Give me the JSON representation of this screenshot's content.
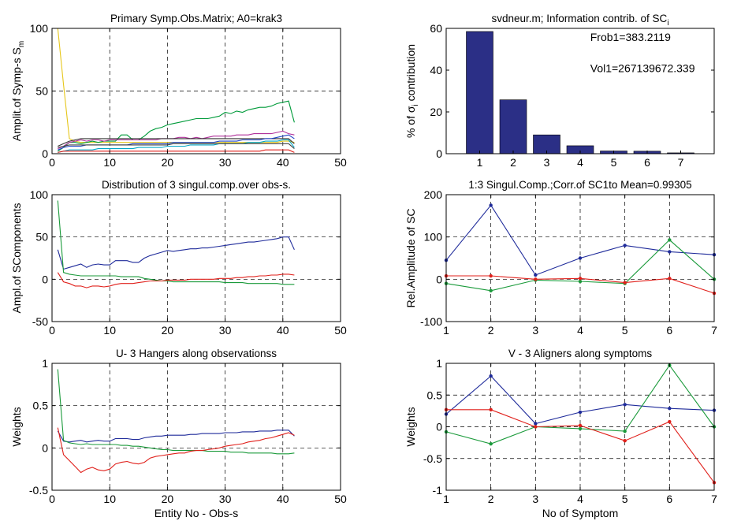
{
  "chart_data": [
    {
      "id": "p1",
      "type": "line",
      "title": "Primary Symp.Obs.Matrix; A0=krak3",
      "ylabel": "Amplit.of Symp-s S",
      "ylabel_sub": "m",
      "xlabel": "",
      "xlim": [
        0,
        50
      ],
      "ylim": [
        0,
        100
      ],
      "xticks": [
        0,
        10,
        20,
        30,
        40,
        50
      ],
      "yticks": [
        0,
        50,
        100
      ],
      "grid": true,
      "x_start": 1,
      "series": [
        {
          "color": "#e6c619",
          "values": [
            100,
            55,
            12,
            10,
            9,
            9,
            9,
            9,
            9,
            9,
            9,
            9,
            9,
            9,
            9,
            9,
            9,
            9,
            9,
            9,
            9,
            9,
            9,
            9,
            9,
            9,
            9,
            9,
            9,
            9,
            9,
            9,
            9,
            9,
            9,
            9,
            9,
            9,
            9,
            10,
            10,
            9
          ]
        },
        {
          "color": "#009b3a",
          "values": [
            2,
            5,
            9,
            9,
            8,
            9,
            10,
            9,
            10,
            10,
            10,
            15,
            15,
            11,
            11,
            14,
            18,
            20,
            21,
            23,
            24,
            25,
            26,
            27,
            28,
            28,
            28,
            29,
            30,
            33,
            32,
            34,
            33,
            35,
            36,
            37,
            37,
            38,
            40,
            41,
            42,
            25
          ]
        },
        {
          "color": "#b0309a",
          "values": [
            4,
            6,
            9,
            10,
            11,
            10,
            11,
            11,
            10,
            11,
            11,
            11,
            11,
            11,
            11,
            11,
            11,
            11,
            12,
            12,
            12,
            13,
            13,
            12,
            13,
            12,
            13,
            14,
            14,
            14,
            14,
            15,
            15,
            15,
            16,
            16,
            16,
            16,
            17,
            18,
            16,
            15
          ]
        },
        {
          "color": "#333333",
          "values": [
            6,
            8,
            10,
            11,
            12,
            12,
            12,
            12,
            12,
            12,
            12,
            12,
            12,
            12,
            12,
            12,
            12,
            12,
            12,
            12,
            12,
            12,
            12,
            12,
            12,
            12,
            12,
            12,
            12,
            12,
            12,
            12,
            12,
            12,
            12,
            12,
            12,
            12,
            12,
            12,
            12,
            8
          ]
        },
        {
          "color": "#1e44c8",
          "values": [
            3,
            5,
            6,
            6,
            6,
            7,
            7,
            7,
            7,
            7,
            7,
            7,
            7,
            8,
            8,
            8,
            8,
            8,
            8,
            8,
            9,
            9,
            9,
            9,
            9,
            9,
            9,
            9,
            10,
            10,
            10,
            10,
            11,
            11,
            11,
            11,
            12,
            12,
            13,
            14,
            15,
            12
          ]
        },
        {
          "color": "#00a6c6",
          "values": [
            1,
            2,
            3,
            3,
            3,
            3,
            3,
            4,
            4,
            4,
            4,
            4,
            4,
            4,
            5,
            5,
            5,
            5,
            5,
            6,
            6,
            6,
            6,
            7,
            7,
            7,
            7,
            7,
            8,
            8,
            8,
            8,
            8,
            9,
            9,
            9,
            10,
            10,
            10,
            11,
            11,
            5
          ]
        },
        {
          "color": "#e0201b",
          "values": [
            1,
            2,
            2,
            2,
            2,
            2,
            2,
            2,
            2,
            2,
            2,
            2,
            2,
            2,
            2,
            2,
            2,
            2,
            2,
            2,
            2,
            2,
            2,
            2,
            2,
            2,
            2,
            2,
            2,
            2,
            2,
            2,
            2,
            2,
            2,
            2,
            3,
            3,
            3,
            3,
            3,
            1
          ]
        },
        {
          "color": "#444444",
          "values": [
            5,
            6,
            7,
            7,
            7,
            7,
            7,
            7,
            7,
            7,
            7,
            7,
            7,
            7,
            7,
            7,
            7,
            7,
            7,
            7,
            8,
            8,
            8,
            8,
            8,
            8,
            8,
            8,
            8,
            8,
            8,
            8,
            8,
            8,
            8,
            8,
            8,
            8,
            8,
            8,
            8,
            4
          ]
        }
      ]
    },
    {
      "id": "p2",
      "type": "bar",
      "title": "svdneur.m; Information contrib. of SC",
      "title_sub": "i",
      "ylabel": "% of σ",
      "ylabel_sub": "i",
      "ylabel_suffix": " contribution",
      "xlabel": "",
      "xlim": [
        0,
        8
      ],
      "ylim": [
        0,
        60
      ],
      "xticks": [
        1,
        2,
        3,
        4,
        5,
        6,
        7
      ],
      "yticks": [
        0,
        20,
        40,
        60
      ],
      "grid": false,
      "bar_color": "#2b2f86",
      "categories": [
        1,
        2,
        3,
        4,
        5,
        6,
        7
      ],
      "values": [
        58.5,
        25.8,
        9.0,
        3.8,
        1.3,
        1.2,
        0.4
      ],
      "annotations": [
        "Frob1=383.2119",
        "Vol1=267139672.339"
      ]
    },
    {
      "id": "p3",
      "type": "line",
      "title": "Distribution of 3 singul.comp.over obs-s.",
      "ylabel": "Ampl.of SComponents",
      "xlabel": "",
      "xlim": [
        0,
        50
      ],
      "ylim": [
        -50,
        100
      ],
      "xticks": [
        0,
        10,
        20,
        30,
        40,
        50
      ],
      "yticks": [
        -50,
        0,
        50,
        100
      ],
      "grid": true,
      "x_start": 1,
      "series": [
        {
          "color": "#1e2a9a",
          "values": [
            35,
            12,
            14,
            16,
            18,
            14,
            17,
            18,
            17,
            17,
            22,
            22,
            22,
            20,
            20,
            25,
            28,
            30,
            32,
            34,
            33,
            34,
            35,
            36,
            36,
            37,
            37,
            38,
            39,
            40,
            41,
            42,
            43,
            44,
            44,
            45,
            46,
            47,
            48,
            50,
            50,
            35
          ]
        },
        {
          "color": "#1a9a3a",
          "values": [
            93,
            8,
            6,
            5,
            4,
            4,
            4,
            4,
            4,
            4,
            4,
            3,
            3,
            3,
            3,
            1,
            0,
            -1,
            -2,
            -2,
            -3,
            -3,
            -3,
            -3,
            -3,
            -3,
            -3,
            -3,
            -3,
            -4,
            -4,
            -4,
            -4,
            -5,
            -5,
            -5,
            -5,
            -5,
            -5,
            -6,
            -6,
            -6
          ]
        },
        {
          "color": "#e0201b",
          "values": [
            8,
            -3,
            -5,
            -8,
            -8,
            -10,
            -8,
            -8,
            -9,
            -8,
            -6,
            -5,
            -5,
            -5,
            -4,
            -3,
            -2,
            -2,
            -2,
            -1,
            -1,
            -1,
            -1,
            0,
            0,
            0,
            0,
            0,
            1,
            1,
            1,
            2,
            2,
            3,
            3,
            4,
            4,
            5,
            5,
            6,
            6,
            5
          ]
        }
      ]
    },
    {
      "id": "p4",
      "type": "line",
      "title": "1:3 Singul.Comp.;Corr.of SC1to Mean=0.99305",
      "ylabel": "Rel.Amplitude of SC",
      "xlabel": "",
      "xlim": [
        1,
        7
      ],
      "ylim": [
        -100,
        200
      ],
      "xticks": [
        1,
        2,
        3,
        4,
        5,
        6,
        7
      ],
      "yticks": [
        -100,
        0,
        100,
        200
      ],
      "grid": true,
      "markers": true,
      "x": [
        1,
        2,
        3,
        4,
        5,
        6,
        7
      ],
      "series": [
        {
          "color": "#1e2a9a",
          "values": [
            45,
            175,
            10,
            50,
            80,
            65,
            58
          ]
        },
        {
          "color": "#1a9a3a",
          "values": [
            -10,
            -27,
            -2,
            -5,
            -10,
            93,
            0
          ]
        },
        {
          "color": "#e0201b",
          "values": [
            8,
            8,
            0,
            2,
            -8,
            2,
            -33
          ]
        }
      ]
    },
    {
      "id": "p5",
      "type": "line",
      "title": "U- 3 Hangers along observationss",
      "ylabel": "Weights",
      "xlabel": "Entity No - Obs-s",
      "xlim": [
        0,
        50
      ],
      "ylim": [
        -0.5,
        1
      ],
      "xticks": [
        0,
        10,
        20,
        30,
        40,
        50
      ],
      "yticks": [
        -0.5,
        0,
        0.5,
        1
      ],
      "grid": true,
      "x_start": 1,
      "series": [
        {
          "color": "#1e2a9a",
          "values": [
            0.2,
            0.08,
            0.07,
            0.08,
            0.09,
            0.07,
            0.08,
            0.09,
            0.08,
            0.08,
            0.11,
            0.11,
            0.11,
            0.1,
            0.1,
            0.12,
            0.13,
            0.14,
            0.14,
            0.15,
            0.15,
            0.15,
            0.15,
            0.16,
            0.16,
            0.17,
            0.17,
            0.17,
            0.17,
            0.18,
            0.18,
            0.18,
            0.19,
            0.19,
            0.19,
            0.2,
            0.2,
            0.2,
            0.21,
            0.21,
            0.21,
            0.14
          ]
        },
        {
          "color": "#1a9a3a",
          "values": [
            0.93,
            0.09,
            0.06,
            0.05,
            0.04,
            0.05,
            0.04,
            0.04,
            0.04,
            0.04,
            0.04,
            0.03,
            0.03,
            0.02,
            0.02,
            0.01,
            0.0,
            -0.01,
            -0.02,
            -0.02,
            -0.03,
            -0.03,
            -0.03,
            -0.03,
            -0.03,
            -0.03,
            -0.04,
            -0.04,
            -0.04,
            -0.04,
            -0.05,
            -0.05,
            -0.05,
            -0.06,
            -0.06,
            -0.06,
            -0.06,
            -0.06,
            -0.07,
            -0.07,
            -0.07,
            -0.06
          ]
        },
        {
          "color": "#e0201b",
          "values": [
            0.24,
            -0.08,
            -0.15,
            -0.22,
            -0.29,
            -0.25,
            -0.23,
            -0.26,
            -0.27,
            -0.25,
            -0.19,
            -0.17,
            -0.16,
            -0.18,
            -0.19,
            -0.17,
            -0.12,
            -0.1,
            -0.09,
            -0.08,
            -0.07,
            -0.06,
            -0.06,
            -0.04,
            -0.03,
            -0.03,
            -0.02,
            -0.01,
            0.0,
            0.02,
            0.03,
            0.04,
            0.05,
            0.07,
            0.08,
            0.09,
            0.11,
            0.12,
            0.14,
            0.16,
            0.18,
            0.15
          ]
        }
      ]
    },
    {
      "id": "p6",
      "type": "line",
      "title": "V - 3 Aligners along symptoms",
      "ylabel": "Weights",
      "xlabel": "No of Symptom",
      "xlim": [
        1,
        7
      ],
      "ylim": [
        -1,
        1
      ],
      "xticks": [
        1,
        2,
        3,
        4,
        5,
        6,
        7
      ],
      "yticks": [
        -1,
        -0.5,
        0,
        0.5,
        1
      ],
      "grid": true,
      "markers": true,
      "x": [
        1,
        2,
        3,
        4,
        5,
        6,
        7
      ],
      "series": [
        {
          "color": "#1e2a9a",
          "values": [
            0.2,
            0.8,
            0.05,
            0.23,
            0.35,
            0.29,
            0.26
          ]
        },
        {
          "color": "#1a9a3a",
          "values": [
            -0.08,
            -0.27,
            0.0,
            -0.03,
            -0.07,
            0.97,
            0.0
          ]
        },
        {
          "color": "#e0201b",
          "values": [
            0.27,
            0.27,
            0.0,
            0.02,
            -0.22,
            0.08,
            -0.88
          ]
        }
      ]
    }
  ]
}
